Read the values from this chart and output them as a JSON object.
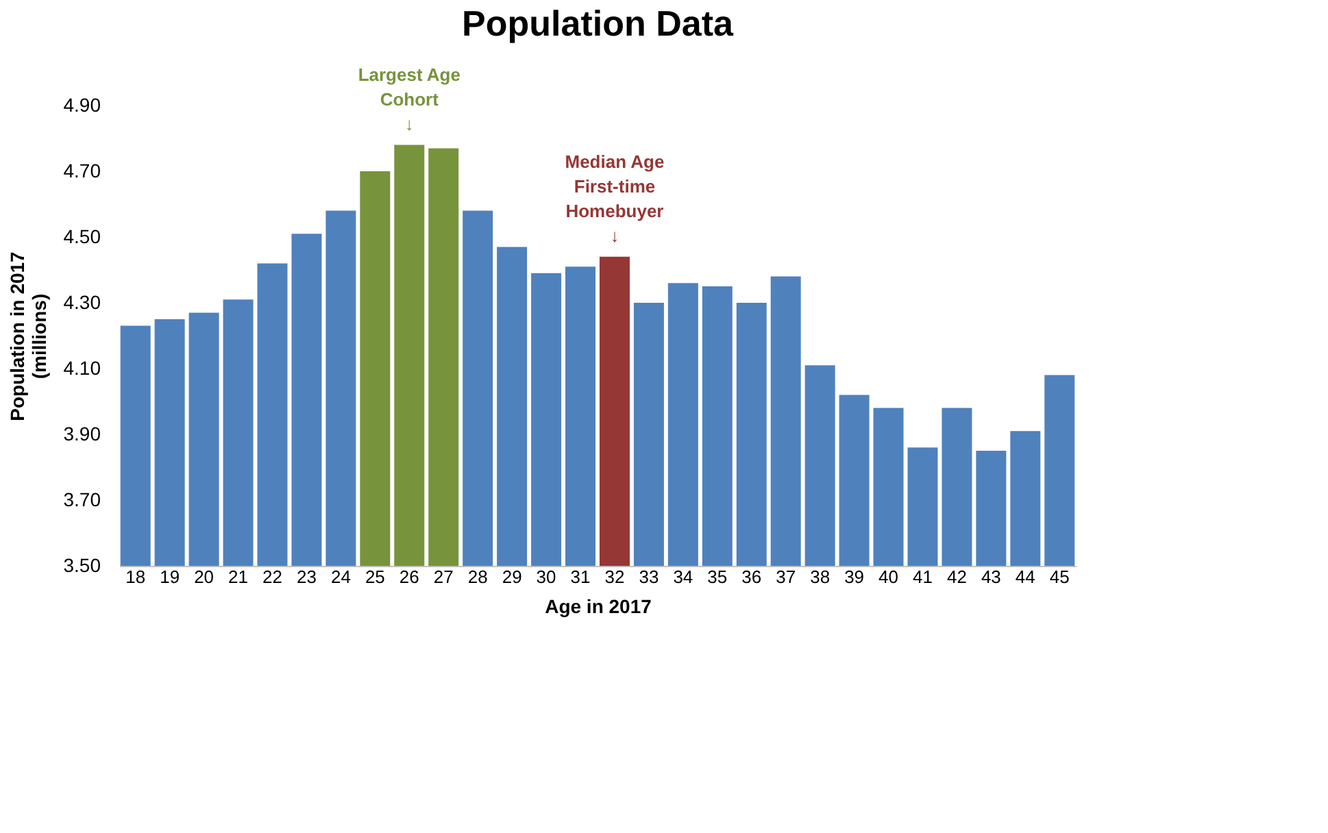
{
  "chart_data": {
    "type": "bar",
    "title": "Population Data",
    "xlabel": "Age in 2017",
    "ylabel": "Population in 2017\n(millions)",
    "categories": [
      "18",
      "19",
      "20",
      "21",
      "22",
      "23",
      "24",
      "25",
      "26",
      "27",
      "28",
      "29",
      "30",
      "31",
      "32",
      "33",
      "34",
      "35",
      "36",
      "37",
      "38",
      "39",
      "40",
      "41",
      "42",
      "43",
      "44",
      "45"
    ],
    "values": [
      4.23,
      4.25,
      4.27,
      4.31,
      4.42,
      4.51,
      4.58,
      4.7,
      4.78,
      4.77,
      4.58,
      4.47,
      4.39,
      4.41,
      4.44,
      4.3,
      4.36,
      4.35,
      4.3,
      4.38,
      4.11,
      4.02,
      3.98,
      3.86,
      3.98,
      3.85,
      3.91,
      4.08
    ],
    "colors": [
      "#4f81bd",
      "#4f81bd",
      "#4f81bd",
      "#4f81bd",
      "#4f81bd",
      "#4f81bd",
      "#4f81bd",
      "#77933c",
      "#77933c",
      "#77933c",
      "#4f81bd",
      "#4f81bd",
      "#4f81bd",
      "#4f81bd",
      "#953735",
      "#4f81bd",
      "#4f81bd",
      "#4f81bd",
      "#4f81bd",
      "#4f81bd",
      "#4f81bd",
      "#4f81bd",
      "#4f81bd",
      "#4f81bd",
      "#4f81bd",
      "#4f81bd",
      "#4f81bd",
      "#4f81bd"
    ],
    "ylim": [
      3.5,
      4.9
    ],
    "yticks": [
      {
        "value": 3.5,
        "label": "3.50"
      },
      {
        "value": 3.7,
        "label": "3.70"
      },
      {
        "value": 3.9,
        "label": "3.90"
      },
      {
        "value": 4.1,
        "label": "4.10"
      },
      {
        "value": 4.3,
        "label": "4.30"
      },
      {
        "value": 4.5,
        "label": "4.50"
      },
      {
        "value": 4.7,
        "label": "4.70"
      },
      {
        "value": 4.9,
        "label": "4.90"
      }
    ],
    "grid": false,
    "annotations": [
      {
        "text": "Largest Age\nCohort\n↓",
        "x": "26",
        "y": 4.78
      },
      {
        "text": "Median Age\nFirst-time\nHomebuyer\n↓",
        "x": "32",
        "y": 4.44
      }
    ]
  }
}
